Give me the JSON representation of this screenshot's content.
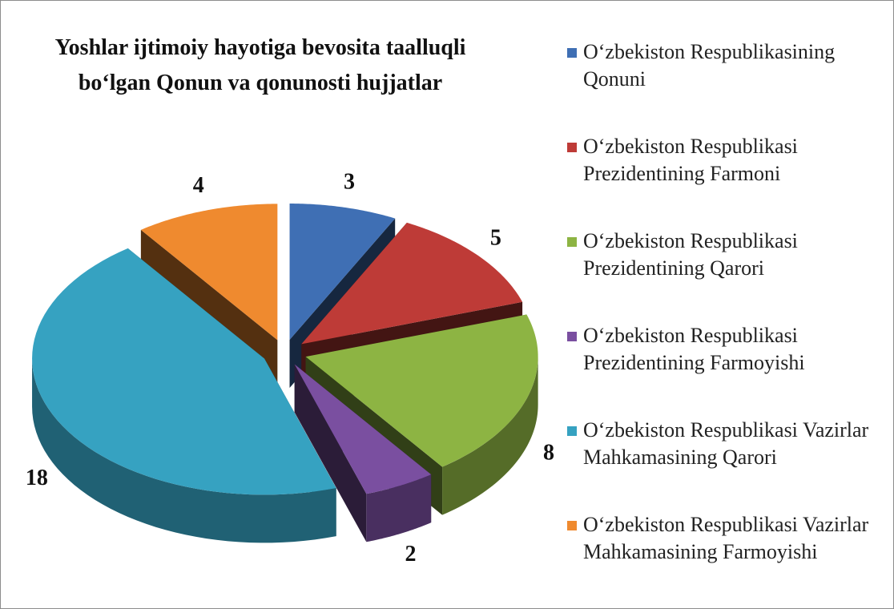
{
  "chart_data": {
    "type": "pie",
    "title": "Yoshlar ijtimoiy hayotiga bevosita taalluqli bo‘lgan Qonun va qonunosti hujjatlar",
    "categories": [
      "O‘zbekiston Respublikasining Qonuni",
      "O‘zbekiston Respublikasi Prezidentining Farmoni",
      "O‘zbekiston Respublikasi Prezidentining Qarori",
      "O‘zbekiston Respublikasi Prezidentining Farmoyishi",
      "O‘zbekiston Respublikasi Vazirlar Mahkamasining Qarori",
      "O‘zbekiston Respublikasi Vazirlar Mahkamasining Farmoyishi"
    ],
    "values": [
      3,
      5,
      8,
      2,
      18,
      4
    ],
    "colors": [
      "#3f6fb4",
      "#be3b37",
      "#8db443",
      "#7a4fa0",
      "#36a2c1",
      "#ef8a2f"
    ]
  }
}
